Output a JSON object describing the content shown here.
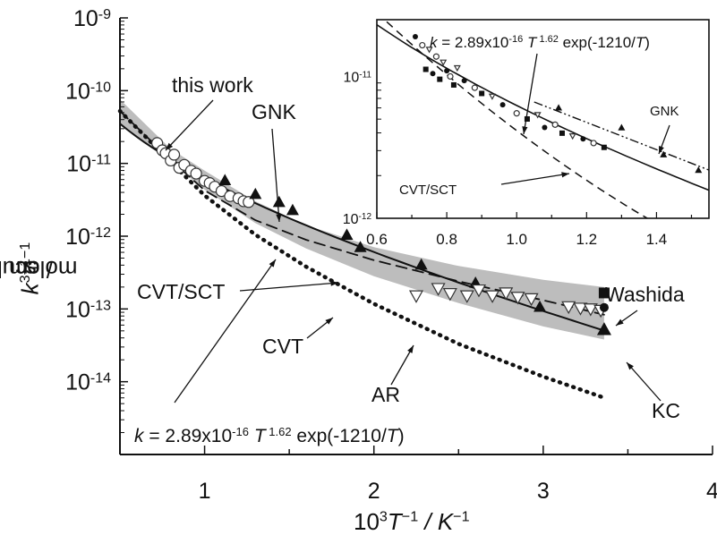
{
  "chart_data": [
    {
      "type": "scatter",
      "scale": "log-y",
      "xlim": [
        0.5,
        4
      ],
      "ylim_exponent": [
        -15,
        -9
      ],
      "x_ticks": [
        "1",
        "2",
        "3",
        "4"
      ],
      "y_tick_base": "10",
      "y_tick_exponents": [
        "-14",
        "-13",
        "-12",
        "-11",
        "-10",
        "-9"
      ],
      "xlabel": {
        "pre": "10",
        "pre_sup": "3",
        "mid": "T",
        "mid_sup": "−1",
        "post": " / K",
        "post_sup": "−1"
      },
      "ylabel": {
        "k": "k",
        "text": " / cm",
        "sup1": "3",
        "text2": " molecule",
        "sup2": "−1",
        "text3": " s",
        "sup3": "−1"
      },
      "annotations": {
        "this_work": "this work",
        "GNK": "GNK",
        "CVT_SCT": "CVT/SCT",
        "CVT": "CVT",
        "AR": "AR",
        "Washida": "Washida",
        "KC": "KC",
        "formula_k": "k",
        "formula_mid": " = 2.89x10",
        "formula_exp": "-16",
        "formula_T": "T",
        "formula_Texp": " 1.62",
        "formula_tail": " exp(-1210/",
        "formula_T2": "T",
        "formula_close": ")"
      },
      "fit_curve": {
        "name": "fit",
        "A": 2.89e-16,
        "n": 1.62,
        "E_over_R": 1210,
        "style": "solid"
      },
      "cvt_sct_curve": {
        "style": "dashed",
        "x": [
          0.5,
          0.8,
          1.0,
          1.3,
          1.6,
          2.0,
          2.5,
          3.0,
          3.36
        ],
        "log10k": [
          -10.28,
          -10.95,
          -11.37,
          -11.78,
          -12.05,
          -12.33,
          -12.62,
          -12.88,
          -13.08
        ]
      },
      "cvt_curve": {
        "style": "dotted",
        "x": [
          0.5,
          0.8,
          1.0,
          1.3,
          1.6,
          2.0,
          2.5,
          3.0,
          3.36
        ],
        "log10k": [
          -10.28,
          -10.98,
          -11.44,
          -11.98,
          -12.42,
          -12.93,
          -13.48,
          -13.93,
          -14.22
        ]
      },
      "uncertainty_band": {
        "x": [
          0.5,
          0.8,
          1.0,
          1.3,
          1.6,
          2.0,
          2.5,
          3.0,
          3.36
        ],
        "upper_log10k": [
          -10.12,
          -10.8,
          -11.1,
          -11.52,
          -11.85,
          -12.15,
          -12.41,
          -12.6,
          -12.7
        ],
        "lower_log10k": [
          -10.45,
          -10.98,
          -11.36,
          -11.82,
          -12.17,
          -12.55,
          -12.92,
          -13.24,
          -13.42
        ]
      },
      "series": [
        {
          "name": "this work",
          "marker": "open-circle",
          "x": [
            0.72,
            0.75,
            0.77,
            0.8,
            0.82,
            0.85,
            0.88,
            0.92,
            0.95,
            1.0,
            1.03,
            1.06,
            1.1,
            1.15,
            1.2,
            1.23,
            1.26
          ],
          "log10k": [
            -10.72,
            -10.82,
            -10.86,
            -10.96,
            -10.88,
            -11.06,
            -11.02,
            -11.1,
            -11.14,
            -11.24,
            -11.27,
            -11.32,
            -11.38,
            -11.45,
            -11.48,
            -11.52,
            -11.53
          ]
        },
        {
          "name": "GNK",
          "marker": "filled-triangle",
          "x": [
            1.12,
            1.3,
            1.44,
            1.52,
            1.84,
            1.92,
            2.28,
            2.6,
            2.98,
            3.36
          ],
          "log10k": [
            -11.23,
            -11.42,
            -11.53,
            -11.64,
            -11.98,
            -12.15,
            -12.39,
            -12.64,
            -12.97,
            -13.28
          ]
        },
        {
          "name": "AR",
          "marker": "open-inverted-triangle",
          "x": [
            2.25,
            2.38,
            2.45,
            2.55,
            2.62,
            2.7,
            2.78,
            2.85,
            2.93,
            3.15,
            3.22,
            3.28,
            3.34
          ],
          "log10k": [
            -12.82,
            -12.72,
            -12.79,
            -12.82,
            -12.74,
            -12.82,
            -12.78,
            -12.84,
            -12.86,
            -12.97,
            -12.99,
            -13.0,
            -13.02
          ]
        },
        {
          "name": "Washida",
          "marker": "filled-square",
          "x": [
            3.36
          ],
          "log10k": [
            -12.78
          ]
        },
        {
          "name": "KC",
          "marker": "filled-circle",
          "x": [
            3.36
          ],
          "log10k": [
            -12.98
          ]
        }
      ]
    },
    {
      "type": "scatter",
      "inset": true,
      "scale": "log-y",
      "xlim": [
        0.6,
        1.55
      ],
      "ylim_exponent": [
        -12,
        -10.6
      ],
      "x_ticks": [
        "0.6",
        "0.8",
        "1.0",
        "1.2",
        "1.4"
      ],
      "y_tick_base": "10",
      "y_tick_exponents": [
        "-12",
        "-11"
      ],
      "annotations": {
        "GNK": "GNK",
        "CVT_SCT": "CVT/SCT",
        "formula_k": "k",
        "formula_mid": " = 2.89x10",
        "formula_exp": "-16",
        "formula_T": "T",
        "formula_Texp": " 1.62",
        "formula_tail": " exp(-1210/",
        "formula_T2": "T",
        "formula_close": ")"
      },
      "series": [
        {
          "name": "this work",
          "marker": "mixed",
          "x": [
            0.71,
            0.73,
            0.74,
            0.75,
            0.76,
            0.77,
            0.78,
            0.79,
            0.8,
            0.81,
            0.82,
            0.83,
            0.85,
            0.88,
            0.9,
            0.93,
            0.96,
            1.0,
            1.03,
            1.06,
            1.08,
            1.11,
            1.13,
            1.16,
            1.19,
            1.22,
            1.25
          ],
          "log10k": [
            -10.72,
            -10.78,
            -10.95,
            -10.81,
            -10.98,
            -10.86,
            -11.02,
            -10.9,
            -10.96,
            -11.0,
            -11.06,
            -10.94,
            -11.03,
            -11.08,
            -11.12,
            -11.14,
            -11.2,
            -11.26,
            -11.3,
            -11.27,
            -11.36,
            -11.34,
            -11.4,
            -11.42,
            -11.44,
            -11.47,
            -11.5
          ]
        },
        {
          "name": "GNK",
          "marker": "filled-triangle",
          "x": [
            1.12,
            1.3,
            1.42,
            1.52
          ],
          "log10k": [
            -11.22,
            -11.36,
            -11.55,
            -11.66
          ]
        }
      ]
    }
  ]
}
